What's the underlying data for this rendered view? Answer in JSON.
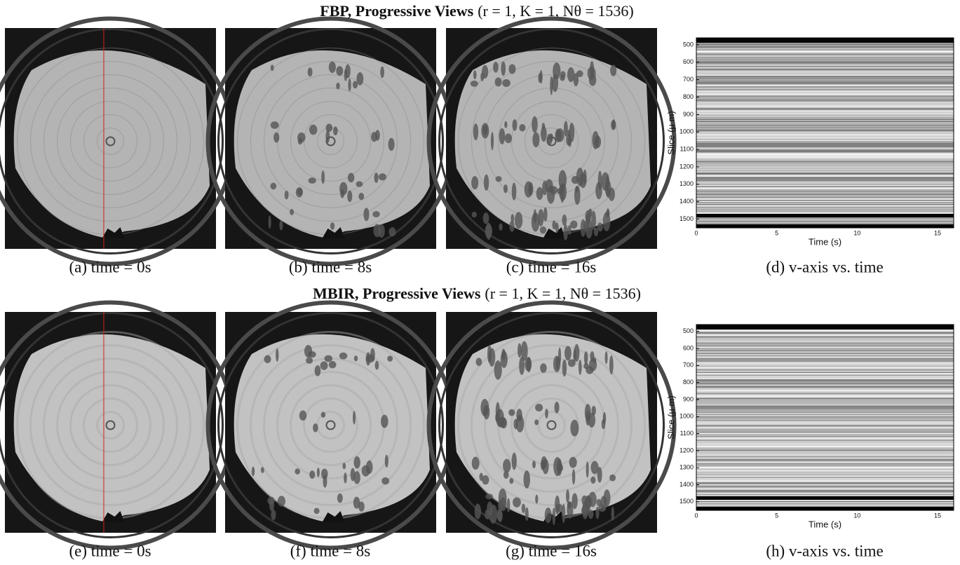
{
  "figure": {
    "rows": [
      {
        "title_bold": "FBP, Progressive Views",
        "title_params": "(r = 1, K = 1, Nθ = 1536)",
        "panels": [
          {
            "caption": "(a) time = 0s"
          },
          {
            "caption": "(b) time = 8s"
          },
          {
            "caption": "(c) time = 16s"
          },
          {
            "caption": "(d) v-axis vs. time",
            "plot": {
              "xlabel": "Time (s)",
              "ylabel": "Slice (μ m)",
              "xlim": [
                0,
                16
              ],
              "ylim": [
                460,
                1550
              ],
              "xticks": [
                0,
                5,
                10,
                15
              ],
              "yticks": [
                500,
                600,
                700,
                800,
                900,
                1000,
                1100,
                1200,
                1300,
                1400,
                1500
              ]
            }
          }
        ]
      },
      {
        "title_bold": "MBIR, Progressive Views",
        "title_params": "(r = 1, K = 1, Nθ = 1536)",
        "panels": [
          {
            "caption": "(e) time = 0s"
          },
          {
            "caption": "(f) time = 8s"
          },
          {
            "caption": "(g) time = 16s"
          },
          {
            "caption": "(h) v-axis vs. time",
            "plot": {
              "xlabel": "Time (s)",
              "ylabel": "Slice (μ m)",
              "xlim": [
                0,
                16
              ],
              "ylim": [
                460,
                1550
              ],
              "xticks": [
                0,
                5,
                10,
                15
              ],
              "yticks": [
                500,
                600,
                700,
                800,
                900,
                1000,
                1100,
                1200,
                1300,
                1400,
                1500
              ]
            }
          }
        ]
      }
    ]
  }
}
